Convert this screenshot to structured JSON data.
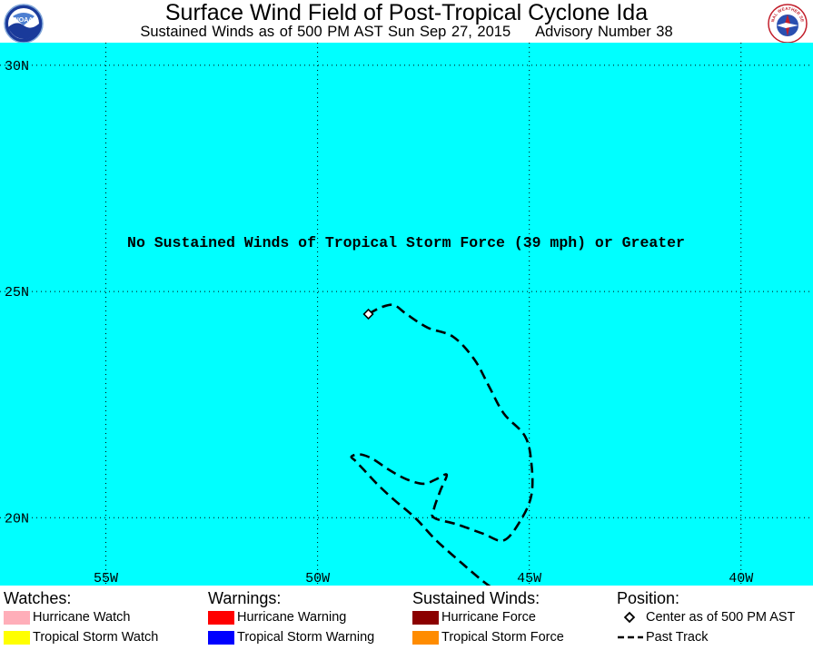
{
  "header": {
    "title": "Surface Wind Field of Post-Tropical Cyclone Ida",
    "subtitle": "Sustained Winds as of 500 PM AST Sun Sep 27, 2015     Advisory Number 38",
    "left_logo": "NOAA",
    "right_logo": "NATIONAL WEATHER SERVICE"
  },
  "map": {
    "ocean_color": "#00FFFF",
    "lat_range": [
      18.5,
      30.5
    ],
    "lon_range": [
      -57.5,
      -38.3
    ],
    "lat_labels": [
      "30N",
      "25N",
      "20N"
    ],
    "lon_labels": [
      "55W",
      "50W",
      "45W",
      "40W"
    ],
    "notice": "No Sustained Winds of Tropical Storm Force (39 mph) or Greater",
    "center": {
      "lat": 24.5,
      "lon": -48.8
    },
    "past_track": [
      [
        24.5,
        -48.8
      ],
      [
        24.65,
        -48.5
      ],
      [
        24.7,
        -48.2
      ],
      [
        24.5,
        -47.9
      ],
      [
        24.2,
        -47.4
      ],
      [
        24.0,
        -46.8
      ],
      [
        23.5,
        -46.3
      ],
      [
        22.9,
        -45.95
      ],
      [
        22.3,
        -45.6
      ],
      [
        21.8,
        -45.1
      ],
      [
        21.2,
        -44.95
      ],
      [
        20.5,
        -44.95
      ],
      [
        19.95,
        -45.2
      ],
      [
        19.5,
        -45.6
      ],
      [
        19.65,
        -46.1
      ],
      [
        19.85,
        -46.7
      ],
      [
        20.0,
        -47.25
      ],
      [
        20.2,
        -47.25
      ],
      [
        20.6,
        -47.1
      ],
      [
        20.95,
        -46.95
      ],
      [
        20.85,
        -47.2
      ],
      [
        20.75,
        -47.5
      ],
      [
        20.85,
        -47.9
      ],
      [
        21.05,
        -48.3
      ],
      [
        21.3,
        -48.7
      ],
      [
        21.4,
        -49.0
      ],
      [
        21.35,
        -49.2
      ],
      [
        21.25,
        -49.1
      ],
      [
        21.05,
        -48.9
      ],
      [
        20.75,
        -48.6
      ],
      [
        20.4,
        -48.2
      ],
      [
        20.0,
        -47.7
      ],
      [
        19.5,
        -47.2
      ],
      [
        19.0,
        -46.6
      ],
      [
        18.6,
        -46.1
      ],
      [
        18.4,
        -45.8
      ]
    ]
  },
  "legend": {
    "watches": {
      "heading": "Watches:",
      "items": [
        {
          "label": "Hurricane Watch",
          "color": "#FFAEB9"
        },
        {
          "label": "Tropical Storm Watch",
          "color": "#FFFF00"
        }
      ]
    },
    "warnings": {
      "heading": "Warnings:",
      "items": [
        {
          "label": "Hurricane Warning",
          "color": "#FF0000"
        },
        {
          "label": "Tropical Storm Warning",
          "color": "#0000FF"
        }
      ]
    },
    "winds": {
      "heading": "Sustained Winds:",
      "items": [
        {
          "label": "Hurricane Force",
          "color": "#8B0000"
        },
        {
          "label": "Tropical Storm Force",
          "color": "#FF8C00"
        }
      ]
    },
    "position": {
      "heading": "Position:",
      "items": [
        {
          "label": "Center as of 500 PM AST",
          "icon": "diamond-icon"
        },
        {
          "label": "Past Track",
          "icon": "dashed-line-icon"
        }
      ]
    }
  }
}
